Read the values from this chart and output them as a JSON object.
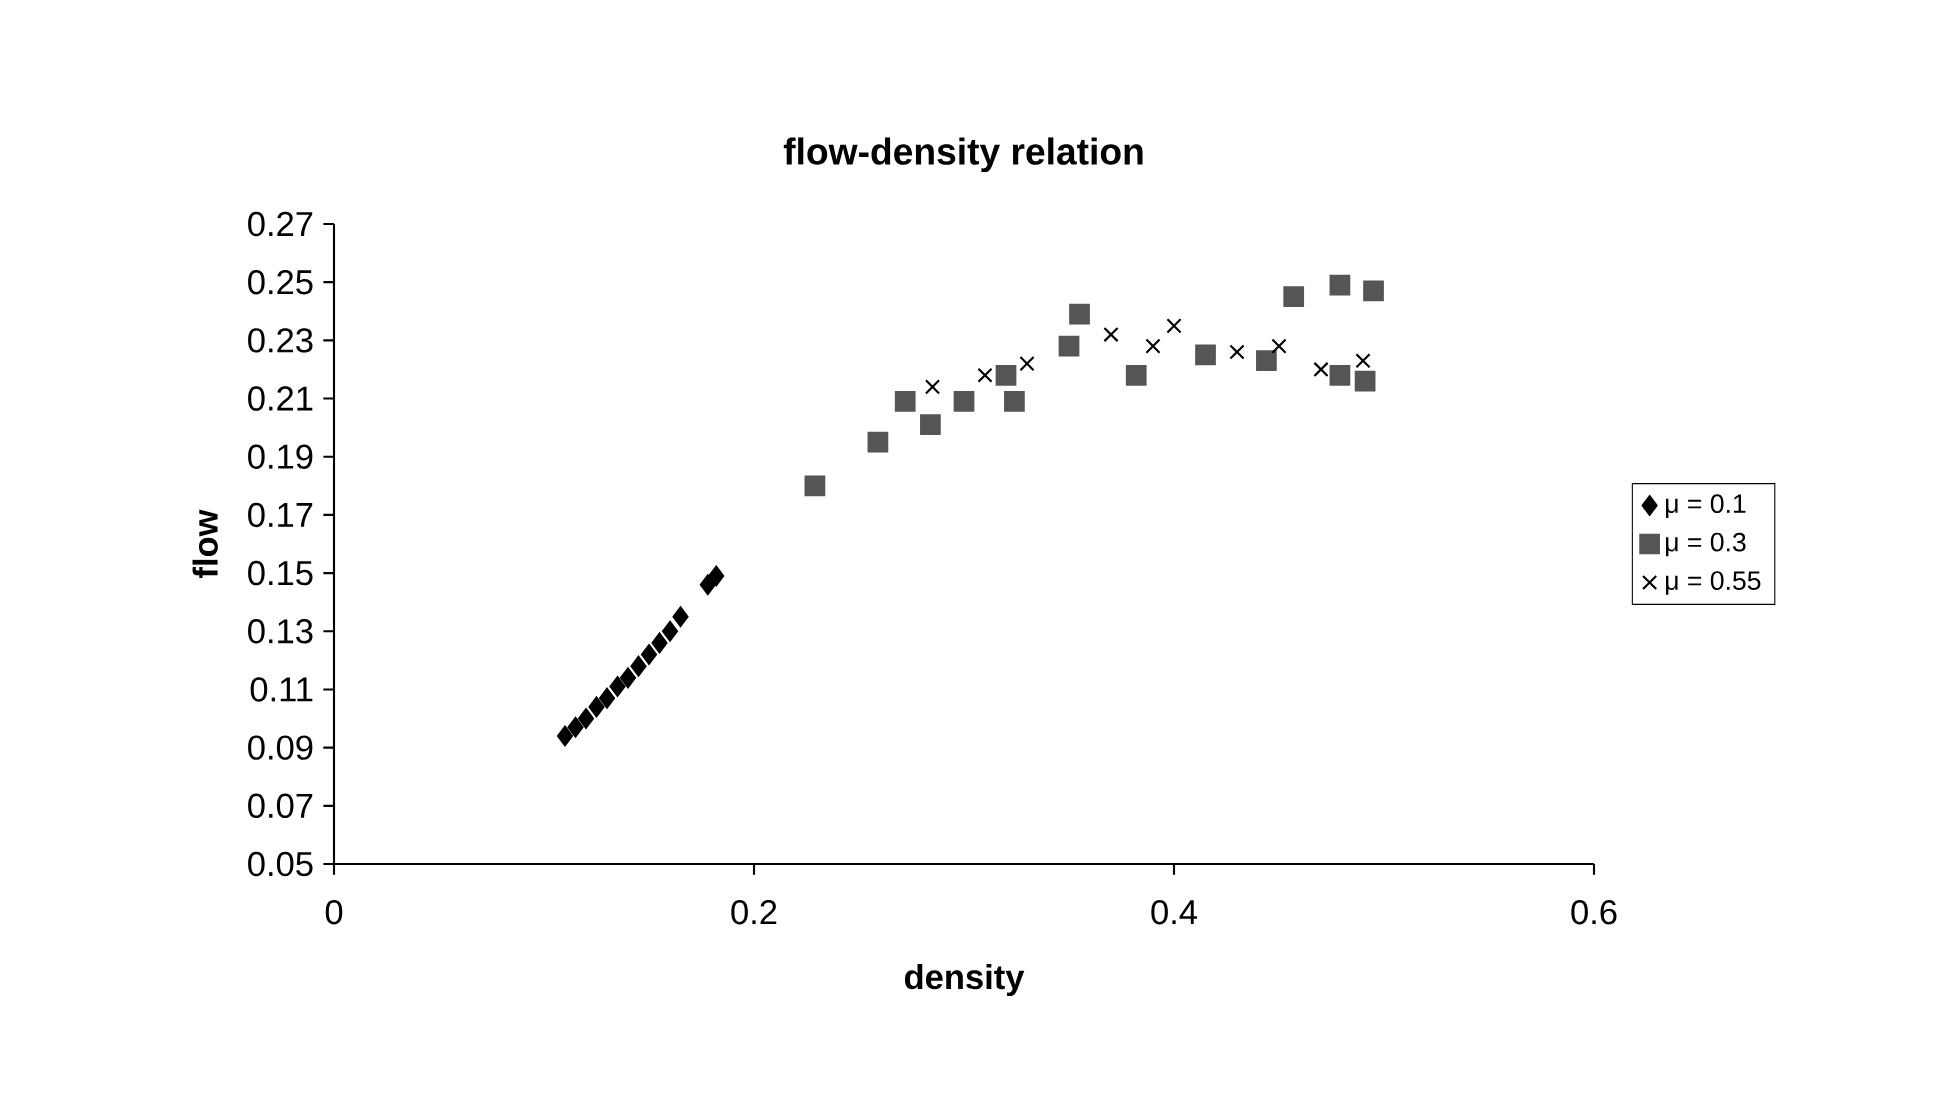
{
  "chart_data": {
    "type": "scatter",
    "title": "flow-density relation",
    "xlabel": "density",
    "ylabel": "flow",
    "xlim": [
      0,
      0.6
    ],
    "ylim": [
      0.05,
      0.27
    ],
    "xticks": [
      0,
      0.2,
      0.4,
      0.6
    ],
    "yticks": [
      0.05,
      0.07,
      0.09,
      0.11,
      0.13,
      0.15,
      0.17,
      0.19,
      0.21,
      0.23,
      0.25,
      0.27
    ],
    "grid": false,
    "legend": "right",
    "series": [
      {
        "name": "μ = 0.1",
        "color": "#000000",
        "marker": "diamond",
        "x": [
          0.11,
          0.115,
          0.12,
          0.125,
          0.13,
          0.135,
          0.14,
          0.145,
          0.15,
          0.155,
          0.16,
          0.165,
          0.178,
          0.182
        ],
        "values": [
          0.094,
          0.097,
          0.1,
          0.104,
          0.107,
          0.111,
          0.114,
          0.118,
          0.122,
          0.126,
          0.13,
          0.135,
          0.146,
          0.149
        ]
      },
      {
        "name": "μ = 0.3",
        "color": "#555555",
        "marker": "square",
        "x": [
          0.229,
          0.259,
          0.272,
          0.284,
          0.3,
          0.32,
          0.324,
          0.35,
          0.355,
          0.382,
          0.415,
          0.444,
          0.457,
          0.479,
          0.495,
          0.479,
          0.491
        ],
        "values": [
          0.18,
          0.195,
          0.209,
          0.201,
          0.209,
          0.218,
          0.209,
          0.228,
          0.239,
          0.218,
          0.225,
          0.223,
          0.245,
          0.249,
          0.247,
          0.218,
          0.216
        ]
      },
      {
        "name": "μ = 0.55",
        "color": "#000000",
        "marker": "cross",
        "x": [
          0.285,
          0.31,
          0.33,
          0.37,
          0.39,
          0.4,
          0.43,
          0.45,
          0.47,
          0.49
        ],
        "values": [
          0.214,
          0.218,
          0.222,
          0.232,
          0.228,
          0.235,
          0.226,
          0.228,
          0.22,
          0.223
        ]
      }
    ]
  }
}
